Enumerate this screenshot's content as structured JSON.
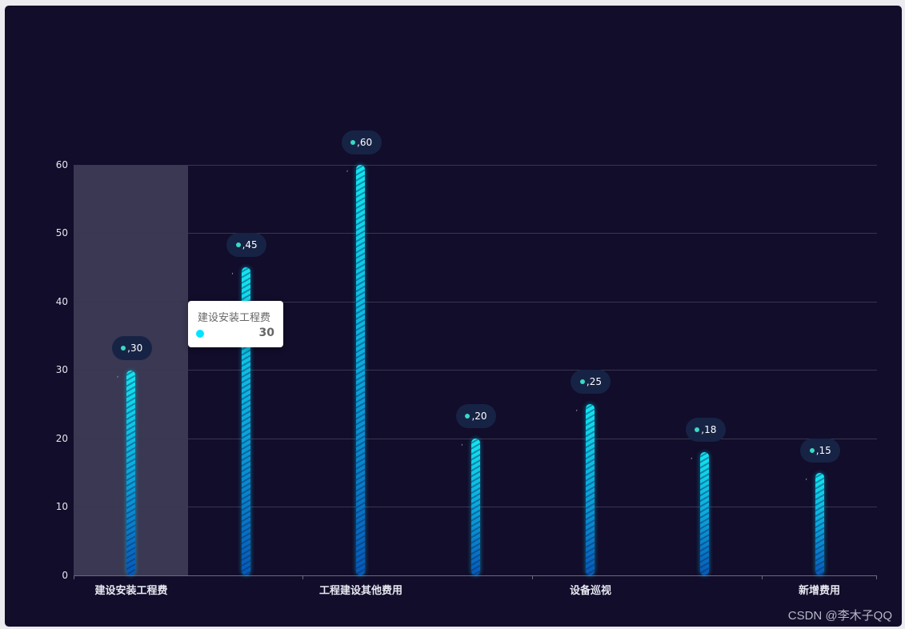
{
  "chart_data": {
    "type": "bar",
    "title": "",
    "xlabel": "",
    "ylabel": "",
    "categories": [
      "建设安装工程费",
      "",
      "工程建设其他费用",
      "",
      "设备巡视",
      "",
      "新增费用"
    ],
    "values": [
      30,
      45,
      60,
      20,
      25,
      18,
      15
    ],
    "ylim": [
      0,
      60
    ],
    "yticks": [
      "0",
      "10",
      "20",
      "30",
      "40",
      "50",
      "60"
    ],
    "grid": true,
    "legend": null,
    "data_labels": [
      ",30",
      ",45",
      ",60",
      ",20",
      ",25",
      ",18",
      ",15"
    ],
    "bar_gradient": [
      "#12e6ef",
      "#0659b8"
    ],
    "label_pill_color": "#172345",
    "label_dot_color": "#3ad9c3"
  },
  "tooltip": {
    "title": "建设安装工程费",
    "value": "30",
    "marker_color": "#00e4ff"
  },
  "watermark": "CSDN @李木子QQ",
  "colors": {
    "background": "#110d2a",
    "page": "#ebebf0",
    "hover_band": "#3a3852"
  }
}
